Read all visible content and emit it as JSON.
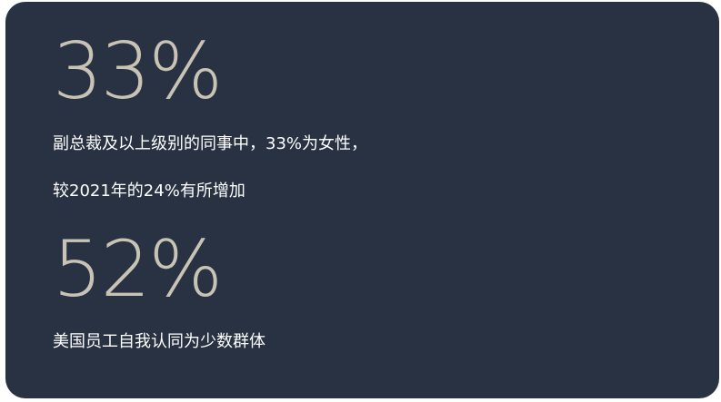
{
  "stats": [
    {
      "value": "33%",
      "lines": [
        "副总裁及以上级别的同事中，33%为女性，",
        "较2021年的24%有所增加"
      ]
    },
    {
      "value": "52%",
      "lines": [
        "美国员工自我认同为少数群体"
      ]
    }
  ]
}
